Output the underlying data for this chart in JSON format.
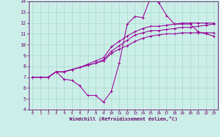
{
  "title": "",
  "xlabel": "Windchill (Refroidissement éolien,°C)",
  "background_color": "#cceee8",
  "grid_color": "#aaddcc",
  "line_color": "#990099",
  "xlim": [
    -0.5,
    23.5
  ],
  "ylim": [
    4,
    14
  ],
  "xticks": [
    0,
    1,
    2,
    3,
    4,
    5,
    6,
    7,
    8,
    9,
    10,
    11,
    12,
    13,
    14,
    15,
    16,
    17,
    18,
    19,
    20,
    21,
    22,
    23
  ],
  "yticks": [
    4,
    5,
    6,
    7,
    8,
    9,
    10,
    11,
    12,
    13,
    14
  ],
  "series": [
    [
      7.0,
      7.0,
      7.0,
      7.5,
      6.8,
      6.7,
      6.2,
      5.3,
      5.3,
      4.7,
      5.7,
      8.3,
      11.9,
      12.6,
      12.5,
      14.4,
      13.9,
      12.7,
      11.9,
      11.9,
      11.9,
      11.2,
      11.0,
      10.8
    ],
    [
      7.0,
      7.0,
      7.0,
      7.5,
      7.5,
      7.7,
      7.9,
      8.1,
      8.3,
      8.5,
      9.2,
      9.6,
      9.9,
      10.3,
      10.6,
      10.8,
      10.9,
      11.0,
      11.0,
      11.1,
      11.1,
      11.1,
      11.1,
      11.1
    ],
    [
      7.0,
      7.0,
      7.0,
      7.5,
      7.5,
      7.7,
      7.9,
      8.1,
      8.3,
      8.6,
      9.4,
      9.9,
      10.4,
      10.9,
      11.1,
      11.3,
      11.3,
      11.4,
      11.5,
      11.6,
      11.6,
      11.7,
      11.8,
      11.9
    ],
    [
      7.0,
      7.0,
      7.0,
      7.5,
      7.5,
      7.7,
      7.9,
      8.2,
      8.5,
      8.8,
      9.8,
      10.3,
      10.8,
      11.2,
      11.5,
      11.7,
      11.7,
      11.8,
      11.9,
      12.0,
      12.0,
      12.0,
      12.0,
      12.0
    ]
  ]
}
